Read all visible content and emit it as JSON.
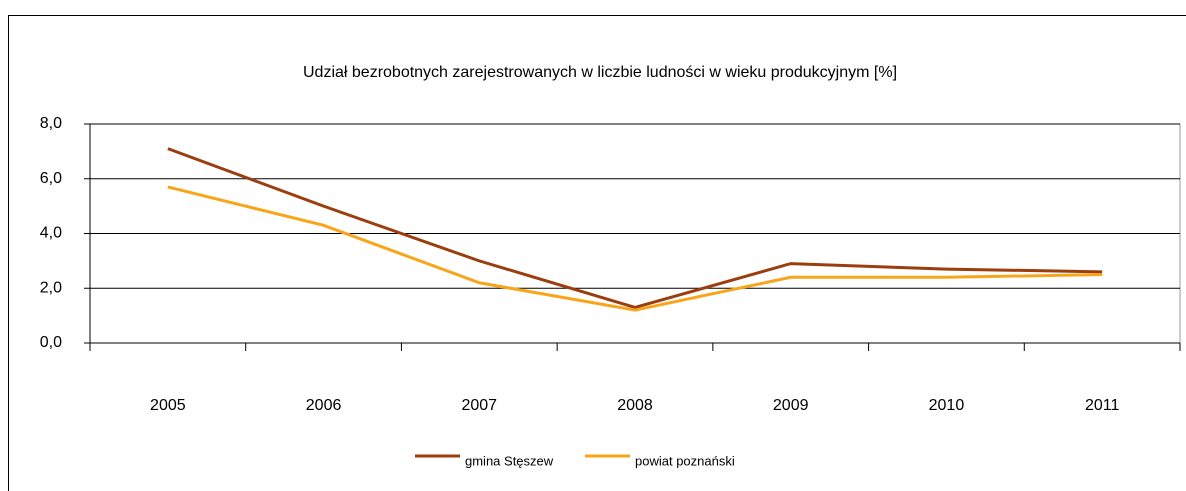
{
  "chart_data": {
    "type": "line",
    "title": "Udział bezrobotnych zarejestrowanych w liczbie ludności w wieku produkcyjnym [%]",
    "categories": [
      "2005",
      "2006",
      "2007",
      "2008",
      "2009",
      "2010",
      "2011"
    ],
    "series": [
      {
        "name": "gmina Stęszew",
        "color": "#9c3d0e",
        "values": [
          7.1,
          5.0,
          3.0,
          1.3,
          2.9,
          2.7,
          2.6
        ]
      },
      {
        "name": "powiat poznański",
        "color": "#f9a51a",
        "values": [
          5.7,
          4.3,
          2.2,
          1.2,
          2.4,
          2.4,
          2.5
        ]
      }
    ],
    "ylim": [
      0,
      8
    ],
    "yticks": [
      {
        "value": 0,
        "label": "0,0"
      },
      {
        "value": 2,
        "label": "2,0"
      },
      {
        "value": 4,
        "label": "4,0"
      },
      {
        "value": 6,
        "label": "6,0"
      },
      {
        "value": 8,
        "label": "8,0"
      }
    ],
    "grid": true,
    "legend": "bottom"
  }
}
